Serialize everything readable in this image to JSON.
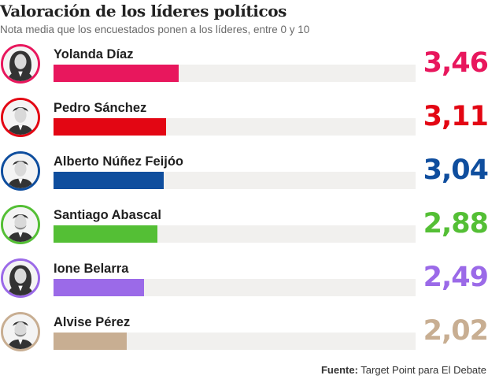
{
  "header": {
    "title": "Valoración de los líderes políticos",
    "subtitle": "Nota media que los encuestados ponen a los líderes, entre 0 y 10"
  },
  "chart_data": {
    "type": "bar",
    "orientation": "horizontal",
    "title": "Valoración de los líderes políticos",
    "subtitle": "Nota media que los encuestados ponen a los líderes, entre 0 y 10",
    "xlim": [
      0,
      10
    ],
    "categories": [
      "Yolanda Díaz",
      "Pedro Sánchez",
      "Alberto Núñez Feijóo",
      "Santiago Abascal",
      "Ione Belarra",
      "Alvise Pérez"
    ],
    "values": [
      3.46,
      3.11,
      3.04,
      2.88,
      2.49,
      2.02
    ],
    "value_labels": [
      "3,46",
      "3,11",
      "3,04",
      "2,88",
      "2,49",
      "2,02"
    ],
    "colors": [
      "#e8175d",
      "#e30613",
      "#0f4e9e",
      "#54bf35",
      "#9b6ae8",
      "#c8ae92"
    ],
    "avatar_icons": [
      "woman-portrait-icon",
      "man-portrait-icon",
      "man-portrait-icon",
      "bearded-man-portrait-icon",
      "woman-portrait-icon",
      "bearded-man-portrait-icon"
    ]
  },
  "footer": {
    "source_label": "Fuente:",
    "source_text": " Target Point para El Debate"
  }
}
